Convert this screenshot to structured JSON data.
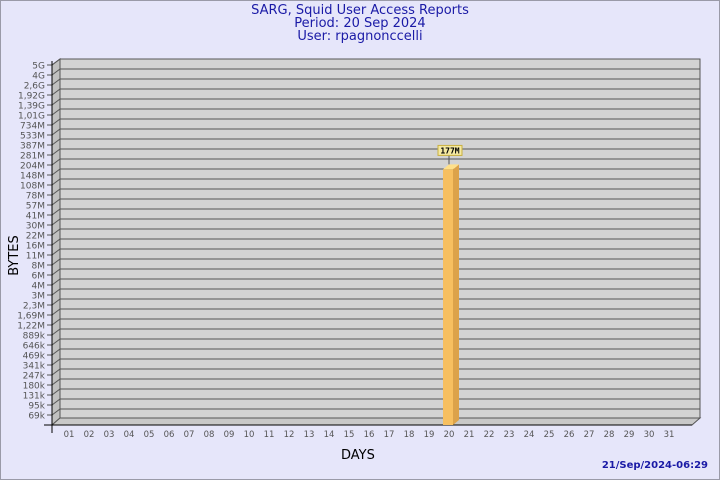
{
  "title_lines": [
    "SARG, Squid User Access Reports",
    "Period: 20 Sep 2024",
    "User: rpagnonccelli"
  ],
  "timestamp": "21/Sep/2024-06:29",
  "colors": {
    "background": "#e6e6fa",
    "title": "#1a1aa6",
    "bar": "#f2b85a",
    "plot": "#d3d3d3"
  },
  "chart_data": {
    "type": "bar",
    "title": "SARG, Squid User Access Reports",
    "xlabel": "DAYS",
    "ylabel": "BYTES",
    "y_scale": "log",
    "grid": true,
    "y_ticks": [
      "5G",
      "4G",
      "2,6G",
      "1,92G",
      "1,39G",
      "1,01G",
      "734M",
      "533M",
      "387M",
      "281M",
      "204M",
      "148M",
      "108M",
      "78M",
      "57M",
      "41M",
      "30M",
      "22M",
      "16M",
      "11M",
      "8M",
      "6M",
      "4M",
      "3M",
      "2,3M",
      "1,69M",
      "1,22M",
      "889k",
      "646k",
      "469k",
      "341k",
      "247k",
      "180k",
      "131k",
      "95k",
      "69k"
    ],
    "categories": [
      "01",
      "02",
      "03",
      "04",
      "05",
      "06",
      "07",
      "08",
      "09",
      "10",
      "11",
      "12",
      "13",
      "14",
      "15",
      "16",
      "17",
      "18",
      "19",
      "20",
      "21",
      "22",
      "23",
      "24",
      "25",
      "26",
      "27",
      "28",
      "29",
      "30",
      "31"
    ],
    "values": [
      null,
      null,
      null,
      null,
      null,
      null,
      null,
      null,
      null,
      null,
      null,
      null,
      null,
      null,
      null,
      null,
      null,
      null,
      null,
      177000000,
      null,
      null,
      null,
      null,
      null,
      null,
      null,
      null,
      null,
      null,
      null
    ],
    "data_labels": {
      "20": "177M"
    }
  }
}
